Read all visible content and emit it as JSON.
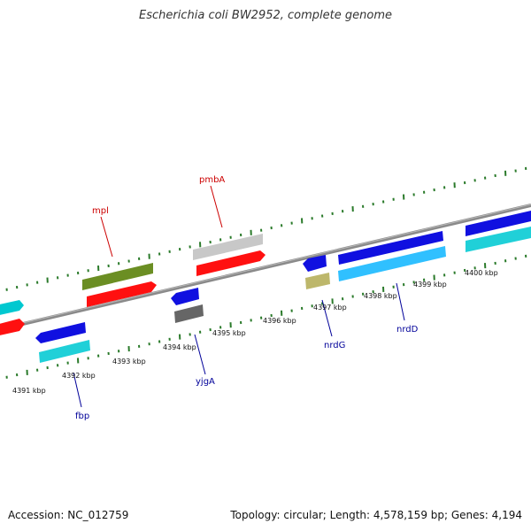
{
  "title": "Escherichia coli BW2952, complete genome",
  "footer": {
    "accession": "Accession: NC_012759",
    "summary": "Topology: circular; Length: 4,578,159 bp; Genes: 4,194"
  },
  "colors": {
    "backbone": "#8a8a8a",
    "tick": "#2a7a2a",
    "label_forward": "#cc0000",
    "label_reverse": "#000099",
    "red": "#ff1010",
    "olive": "#6b8e23",
    "lightgray": "#c8c8c8",
    "blue": "#1010e0",
    "cyan": "#20d0d8",
    "darkgray": "#666666",
    "khaki": "#bdb76b",
    "skyblue": "#30c0ff"
  },
  "ruler": {
    "labels": [
      "4391 kbp",
      "4392 kbp",
      "4393 kbp",
      "4394 kbp",
      "4395 kbp",
      "4396 kbp",
      "4397 kbp",
      "4398 kbp",
      "4399 kbp",
      "4400 kbp"
    ]
  },
  "genes": {
    "forward": [
      "mpl",
      "pmbA"
    ],
    "reverse": [
      "fbp",
      "yjgA",
      "nrdG",
      "nrdD"
    ]
  }
}
